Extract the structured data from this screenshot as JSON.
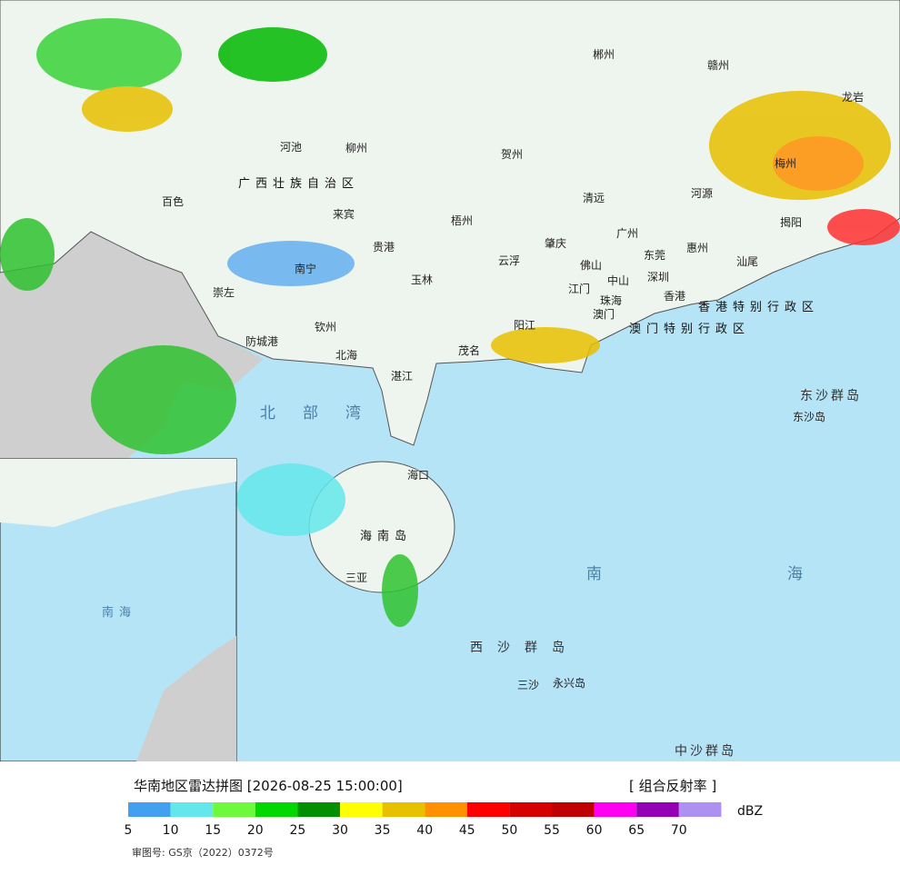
{
  "map": {
    "labels": [
      "南宁",
      "柳州",
      "河池",
      "百色",
      "来宾",
      "贵港",
      "梧州",
      "贺州",
      "玉林",
      "钦州",
      "北海",
      "防城港",
      "崇左",
      "广州",
      "深圳",
      "东莞",
      "惠州",
      "佛山",
      "江门",
      "中山",
      "珠海",
      "澳门",
      "香港",
      "肇庆",
      "云浮",
      "清远",
      "河源",
      "梅州",
      "揭阳",
      "汕尾",
      "阳江",
      "茂名",
      "湛江",
      "海口",
      "三亚",
      "广西壮族自治区",
      "香港特别行政区",
      "澳门特别行政区",
      "东沙群岛",
      "东沙岛",
      "西沙群岛",
      "三沙",
      "永兴岛",
      "中沙群岛",
      "南",
      "海",
      "北部湾",
      "海南岛",
      "郴州",
      "赣州",
      "龙岩",
      "南海"
    ]
  },
  "legend": {
    "title": "华南地区雷达拼图 [2026-08-25 15:00:00]",
    "product": "[ 组合反射率 ]",
    "unit": "dBZ",
    "colors": [
      "#41a0f0",
      "#64e7eb",
      "#6dfa3d",
      "#00d800",
      "#019000",
      "#ffff00",
      "#e7c000",
      "#ff9000",
      "#ff0000",
      "#d60000",
      "#c00000",
      "#ff00f0",
      "#9600b4",
      "#ad90f0"
    ],
    "ticks": [
      5,
      10,
      15,
      20,
      25,
      30,
      35,
      40,
      45,
      50,
      55,
      60,
      65,
      70
    ]
  },
  "footer": {
    "approval": "审图号: GS京（2022）0372号"
  }
}
